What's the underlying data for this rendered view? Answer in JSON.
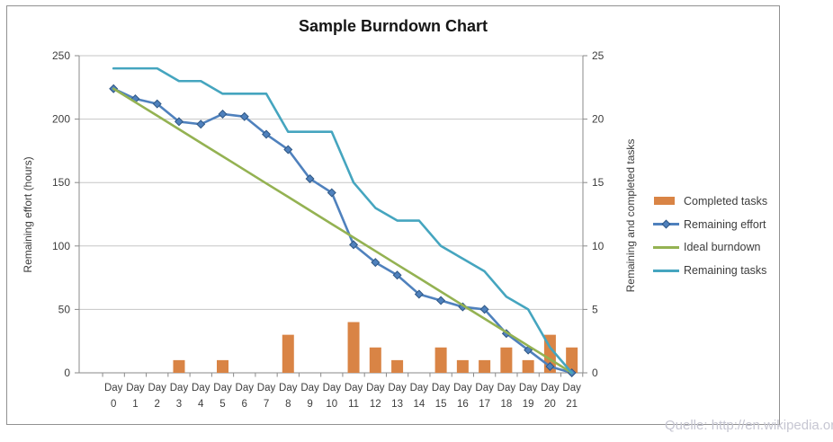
{
  "title": "Sample Burndown Chart",
  "watermark": "Quelle: http://en.wikipedia.org",
  "axes": {
    "left_label": "Remaining effort (hours)",
    "right_label": "Remaining and  completed tasks",
    "left_ticks": [
      250,
      200,
      150,
      100,
      50,
      0
    ],
    "right_ticks": [
      25,
      20,
      15,
      10,
      5,
      0
    ]
  },
  "colors": {
    "grid": "#C6C6C6",
    "axis": "#8A8A8A",
    "tick_text": "#3D3D3D",
    "marker_border": "#2F5784"
  },
  "chart_data": {
    "type": "combo bar+line",
    "title": "Sample Burndown Chart",
    "xlabel": "",
    "ylabel_left": "Remaining effort (hours)",
    "ylabel_right": "Remaining and  completed tasks",
    "left_axis_range": [
      0,
      250
    ],
    "right_axis_range": [
      0,
      25
    ],
    "grid": true,
    "legend_position": "right",
    "categories": [
      "Day 0",
      "Day 1",
      "Day 2",
      "Day 3",
      "Day 4",
      "Day 5",
      "Day 6",
      "Day 7",
      "Day 8",
      "Day 9",
      "Day 10",
      "Day 11",
      "Day 12",
      "Day 13",
      "Day 14",
      "Day 15",
      "Day 16",
      "Day 17",
      "Day 18",
      "Day 19",
      "Day 20",
      "Day 21"
    ],
    "series": [
      {
        "name": "Completed tasks",
        "type": "bar",
        "axis": "right",
        "color": "#D98445",
        "values": [
          0,
          0,
          0,
          1,
          0,
          1,
          0,
          0,
          3,
          0,
          0,
          4,
          2,
          1,
          0,
          2,
          1,
          1,
          2,
          1,
          3,
          2
        ]
      },
      {
        "name": "Remaining effort",
        "type": "line-diamond",
        "axis": "left",
        "color": "#4F81BD",
        "values": [
          224,
          216,
          212,
          198,
          196,
          204,
          202,
          188,
          176,
          153,
          142,
          101,
          87,
          77,
          62,
          57,
          52,
          50,
          31,
          18,
          5,
          0
        ]
      },
      {
        "name": "Ideal burndown",
        "type": "line",
        "axis": "left",
        "color": "#94B252",
        "values": [
          224,
          213.3,
          202.7,
          192,
          181.3,
          170.7,
          160,
          149.3,
          138.7,
          128,
          117.3,
          106.7,
          96,
          85.3,
          74.7,
          64,
          53.3,
          42.7,
          32,
          21.3,
          10.7,
          0
        ]
      },
      {
        "name": "Remaining tasks",
        "type": "line",
        "axis": "right",
        "color": "#45A5BF",
        "values": [
          24,
          24,
          24,
          23,
          23,
          22,
          22,
          22,
          19,
          19,
          19,
          15,
          13,
          12,
          12,
          10,
          9,
          8,
          6,
          5,
          2,
          0
        ]
      }
    ]
  }
}
